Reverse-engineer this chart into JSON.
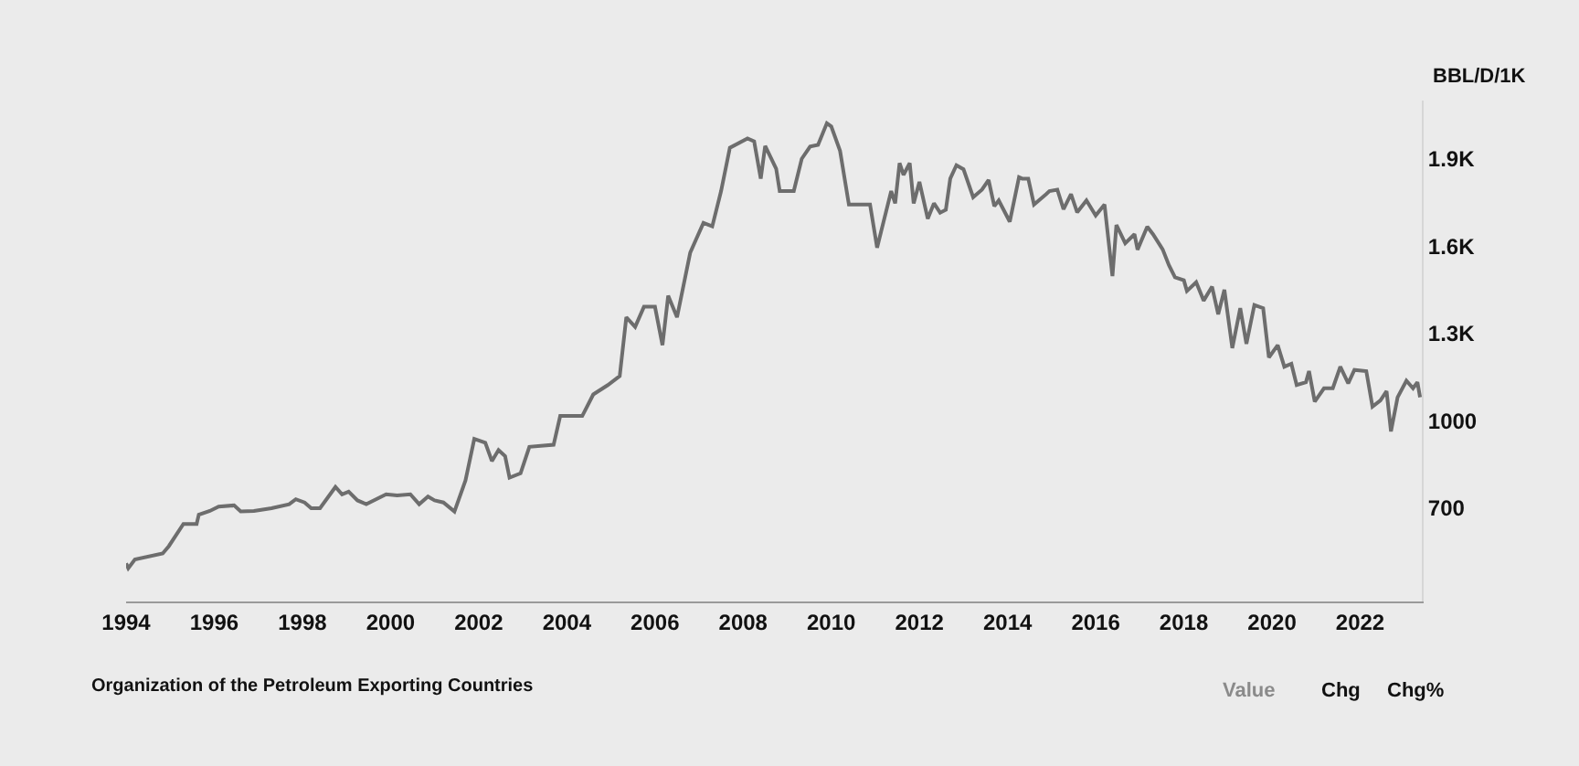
{
  "chart_data": {
    "type": "line",
    "ylabel": "BBL/D/1K",
    "annotations": [
      "Organization of the Petroleum Exporting Countries",
      "Value",
      "Chg",
      "Chg%"
    ],
    "x": [
      1994.0,
      1994.05,
      1994.2,
      1994.83,
      1994.97,
      1995.3,
      1995.6,
      1995.65,
      1995.9,
      1996.1,
      1996.45,
      1996.6,
      1996.9,
      1997.3,
      1997.7,
      1997.85,
      1998.05,
      1998.2,
      1998.4,
      1998.75,
      1998.9,
      1999.05,
      1999.25,
      1999.45,
      1999.9,
      2000.15,
      2000.45,
      2000.65,
      2000.85,
      2001.0,
      2001.2,
      2001.45,
      2001.7,
      2001.9,
      2002.15,
      2002.3,
      2002.45,
      2002.6,
      2002.7,
      2002.95,
      2003.15,
      2003.7,
      2003.85,
      2004.35,
      2004.6,
      2004.93,
      2005.2,
      2005.35,
      2005.55,
      2005.75,
      2006.0,
      2006.17,
      2006.3,
      2006.5,
      2006.8,
      2007.1,
      2007.3,
      2007.5,
      2007.7,
      2008.1,
      2008.25,
      2008.4,
      2008.5,
      2008.75,
      2008.83,
      2009.15,
      2009.33,
      2009.52,
      2009.7,
      2009.9,
      2010.0,
      2010.2,
      2010.4,
      2010.88,
      2011.04,
      2011.36,
      2011.45,
      2011.55,
      2011.64,
      2011.78,
      2011.87,
      2012.0,
      2012.19,
      2012.33,
      2012.47,
      2012.6,
      2012.7,
      2012.84,
      2013.0,
      2013.22,
      2013.42,
      2013.57,
      2013.7,
      2013.8,
      2014.05,
      2014.26,
      2014.33,
      2014.47,
      2014.6,
      2014.88,
      2014.95,
      2015.13,
      2015.27,
      2015.44,
      2015.58,
      2015.79,
      2016.0,
      2016.2,
      2016.38,
      2016.47,
      2016.67,
      2016.88,
      2016.95,
      2017.17,
      2017.3,
      2017.52,
      2017.66,
      2017.8,
      2018.0,
      2018.07,
      2018.28,
      2018.45,
      2018.64,
      2018.78,
      2018.92,
      2019.1,
      2019.28,
      2019.42,
      2019.6,
      2019.8,
      2019.93,
      2020.13,
      2020.28,
      2020.44,
      2020.56,
      2020.77,
      2020.84,
      2020.97,
      2021.18,
      2021.38,
      2021.55,
      2021.73,
      2021.87,
      2022.14,
      2022.28,
      2022.46,
      2022.6,
      2022.7,
      2022.85,
      2023.05,
      2023.2,
      2023.3,
      2023.36
    ],
    "series": [
      {
        "color": "#6d6d6d",
        "values": [
          511,
          494,
          524,
          545,
          570,
          646,
          646,
          678,
          691,
          706,
          710,
          689,
          691,
          700,
          714,
          731,
          720,
          700,
          700,
          773,
          748,
          757,
          727,
          714,
          748,
          744,
          748,
          714,
          740,
          727,
          720,
          689,
          795,
          938,
          925,
          862,
          900,
          879,
          805,
          820,
          911,
          918,
          1017,
          1017,
          1091,
          1123,
          1154,
          1356,
          1323,
          1392,
          1392,
          1260,
          1430,
          1356,
          1578,
          1680,
          1668,
          1789,
          1938,
          1970,
          1960,
          1832,
          1944,
          1866,
          1789,
          1789,
          1900,
          1942,
          1948,
          2022,
          2011,
          1927,
          1743,
          1743,
          1595,
          1789,
          1747,
          1885,
          1845,
          1885,
          1747,
          1821,
          1694,
          1747,
          1715,
          1725,
          1832,
          1878,
          1864,
          1768,
          1794,
          1827,
          1737,
          1757,
          1684,
          1837,
          1832,
          1832,
          1743,
          1779,
          1789,
          1794,
          1727,
          1779,
          1716,
          1757,
          1705,
          1743,
          1497,
          1673,
          1610,
          1641,
          1588,
          1667,
          1641,
          1589,
          1535,
          1493,
          1483,
          1446,
          1476,
          1413,
          1461,
          1366,
          1450,
          1250,
          1387,
          1265,
          1398,
          1387,
          1218,
          1260,
          1186,
          1196,
          1123,
          1133,
          1171,
          1066,
          1112,
          1112,
          1186,
          1129,
          1175,
          1171,
          1049,
          1070,
          1102,
          964,
          1081,
          1138,
          1112,
          1133,
          1081
        ]
      }
    ],
    "xlim": [
      1994,
      2023.4
    ],
    "xticks": [
      1994,
      1996,
      1998,
      2000,
      2002,
      2004,
      2006,
      2008,
      2010,
      2012,
      2014,
      2016,
      2018,
      2020,
      2022
    ],
    "yticks": [
      700,
      {
        "value": 1000,
        "label": "1000"
      },
      {
        "value": 1300,
        "label": "1.3K"
      },
      {
        "value": 1600,
        "label": "1.6K"
      },
      {
        "value": 1900,
        "label": "1.9K"
      }
    ],
    "ylim": [
      380,
      2100
    ],
    "grid": false
  }
}
